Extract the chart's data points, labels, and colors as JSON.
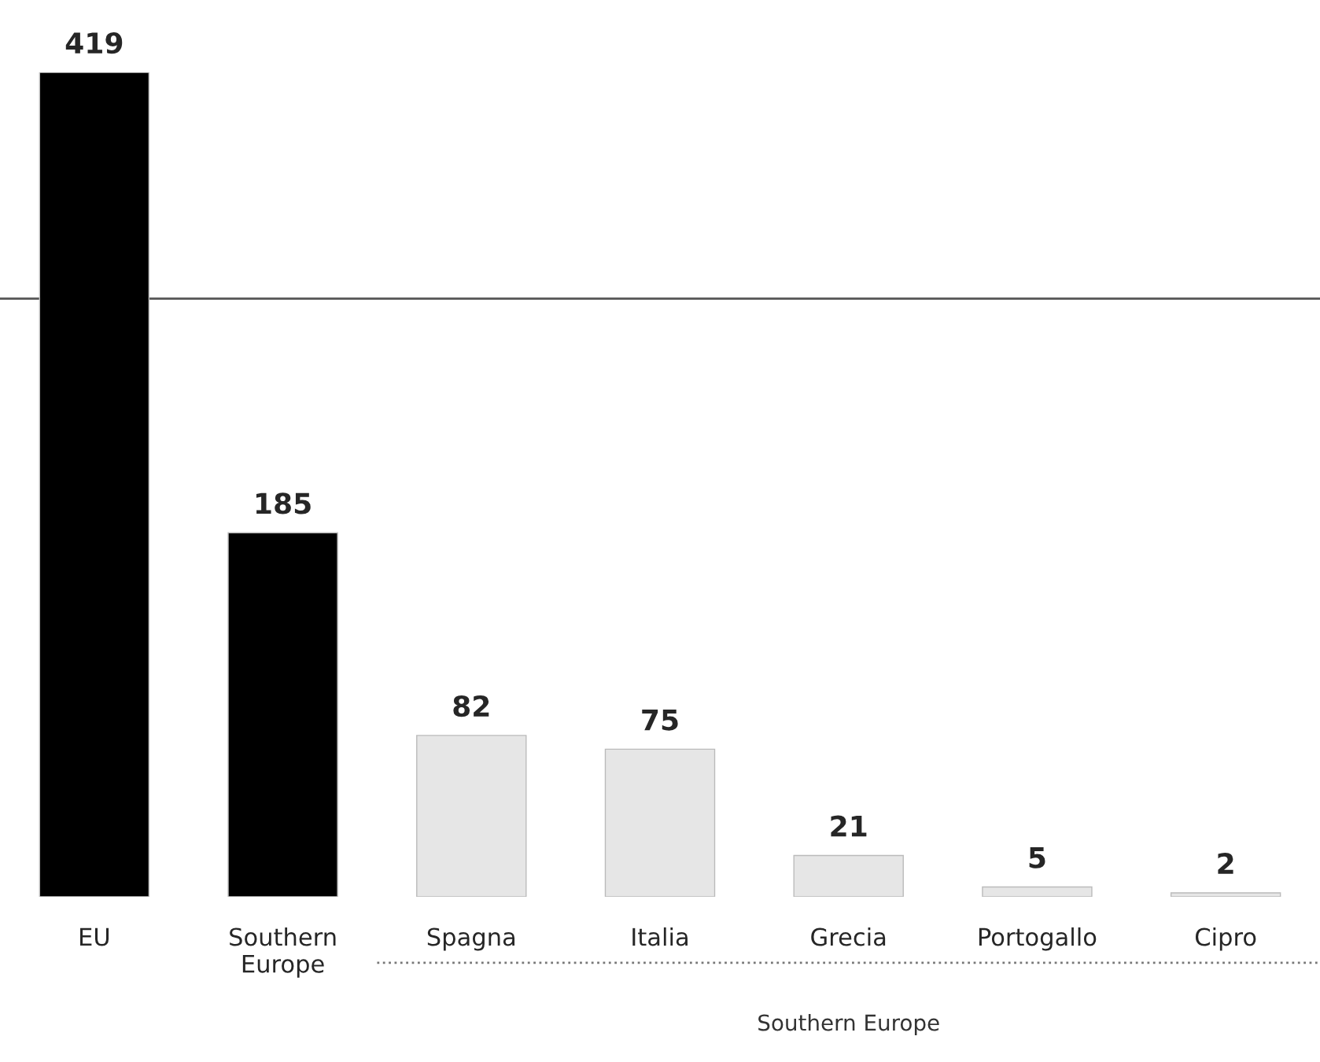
{
  "chart_data": {
    "type": "bar",
    "categories": [
      "EU",
      "Southern\nEurope",
      "Spagna",
      "Italia",
      "Grecia",
      "Portogallo",
      "Cipro"
    ],
    "values": [
      419,
      185,
      82,
      75,
      21,
      5,
      2
    ],
    "colors": [
      "#000000",
      "#000000",
      "#e6e6e6",
      "#e6e6e6",
      "#e6e6e6",
      "#e6e6e6",
      "#e6e6e6"
    ],
    "data_labels": true,
    "ref_lines": [
      {
        "axis": "y",
        "value": 304,
        "color": "#555555"
      }
    ],
    "annotations": [
      "Southern Europe"
    ],
    "grid": false,
    "legend": false
  }
}
